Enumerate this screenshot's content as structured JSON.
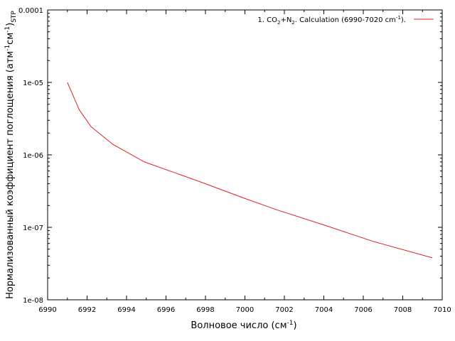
{
  "chart_data": {
    "type": "line",
    "y_scale": "log",
    "grid": false,
    "legend_position": "top-right",
    "series_color": "#e0201c",
    "xlabel": {
      "main": "Волновое число (см",
      "sup": "-1",
      "end": ")"
    },
    "ylabel": {
      "part1": "Нормализованный коэффициент поглощения (атм",
      "sup1": "-1",
      "part2": "см",
      "sup2": "-1",
      "part3": ")",
      "sub": "STP"
    },
    "xlim": [
      6990,
      7010
    ],
    "ylim": [
      1e-08,
      0.0001
    ],
    "x_ticks": [
      6990,
      6992,
      6994,
      6996,
      6998,
      7000,
      7002,
      7004,
      7006,
      7008,
      7010
    ],
    "x_tick_labels": [
      "6990",
      "6992",
      "6994",
      "6996",
      "6998",
      "7000",
      "7002",
      "7004",
      "7006",
      "7008",
      "7010"
    ],
    "y_ticks": [
      1e-08,
      1e-07,
      1e-06,
      1e-05,
      0.0001
    ],
    "y_tick_labels": [
      "1e-08",
      "1e-07",
      "1e-06",
      "1e-05",
      "0.0001"
    ],
    "series": [
      {
        "legend": {
          "t1": "1. CO",
          "sub1": "2",
          "t2": "+N",
          "sub2": "2",
          "t3": ". Calculation  (6990-7020 cm",
          "sup": "-1",
          "t4": ")."
        },
        "x": [
          6991.0,
          6991.6,
          6992.2,
          6993.3,
          6994.9,
          6996.5,
          6998.0,
          7000.0,
          7001.6,
          7004.0,
          7006.5,
          7009.5
        ],
        "y": [
          1e-05,
          4.2e-06,
          2.45e-06,
          1.4e-06,
          8e-07,
          5.6e-07,
          4e-07,
          2.5e-07,
          1.75e-07,
          1.08e-07,
          6.4e-08,
          3.8e-08
        ]
      }
    ]
  }
}
